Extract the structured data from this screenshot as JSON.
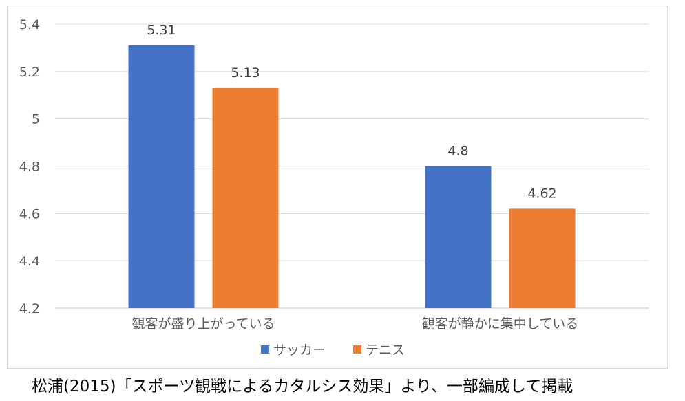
{
  "chart_data": {
    "type": "bar",
    "categories": [
      "観客が盛り上がっている",
      "観客が静かに集中している"
    ],
    "series": [
      {
        "name": "サッカー",
        "values": [
          5.31,
          4.8
        ],
        "color": "#4472c4"
      },
      {
        "name": "テニス",
        "values": [
          5.13,
          4.62
        ],
        "color": "#ed7d31"
      }
    ],
    "ylim": [
      4.2,
      5.4
    ],
    "yticks": [
      "4.2",
      "4.4",
      "4.6",
      "4.8",
      "5",
      "5.2",
      "5.4"
    ],
    "grid": true,
    "legend": "bottom"
  },
  "caption": "松浦(2015)「スポーツ観戦によるカタルシス効果」より、一部編成して掲載"
}
